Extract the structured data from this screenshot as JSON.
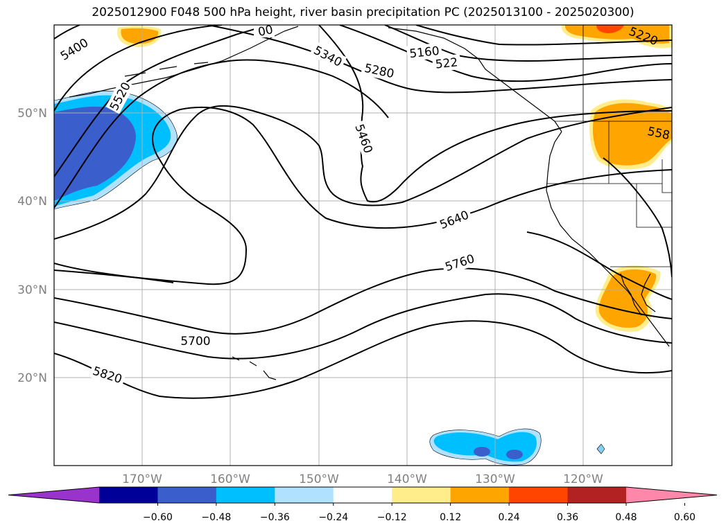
{
  "title": "2025012900 F048 500 hPa height, river basin precipitation PC (2025013100 - 2025020300)",
  "lat_ticks": [
    "50°N",
    "40°N",
    "30°N",
    "20°N"
  ],
  "lon_ticks": [
    "170°W",
    "160°W",
    "150°W",
    "140°W",
    "130°W",
    "120°W"
  ],
  "contour_labels": [
    "5400",
    "5520",
    "5340",
    "5280",
    "5160",
    "522",
    "5460",
    "5640",
    "5760",
    "5700",
    "5820",
    "5220",
    "558",
    "00"
  ],
  "colorbar": {
    "ticks": [
      "−0.60",
      "−0.48",
      "−0.36",
      "−0.24",
      "−0.12",
      "0.12",
      "0.24",
      "0.36",
      "0.48",
      "0.60"
    ],
    "colors": [
      "#9933cc",
      "#000099",
      "#3a5fcd",
      "#00bfff",
      "#b0e2ff",
      "#ffffff",
      "#ffec8b",
      "#ffa500",
      "#ff4500",
      "#b22222",
      "#ff88aa"
    ]
  },
  "colors": {
    "neg_strong": "#3a5fcd",
    "neg_mid": "#00bfff",
    "neg_weak": "#b0e2ff",
    "pos_weak": "#ffec8b",
    "pos_mid": "#ffa500",
    "pos_strong": "#ff4500"
  }
}
